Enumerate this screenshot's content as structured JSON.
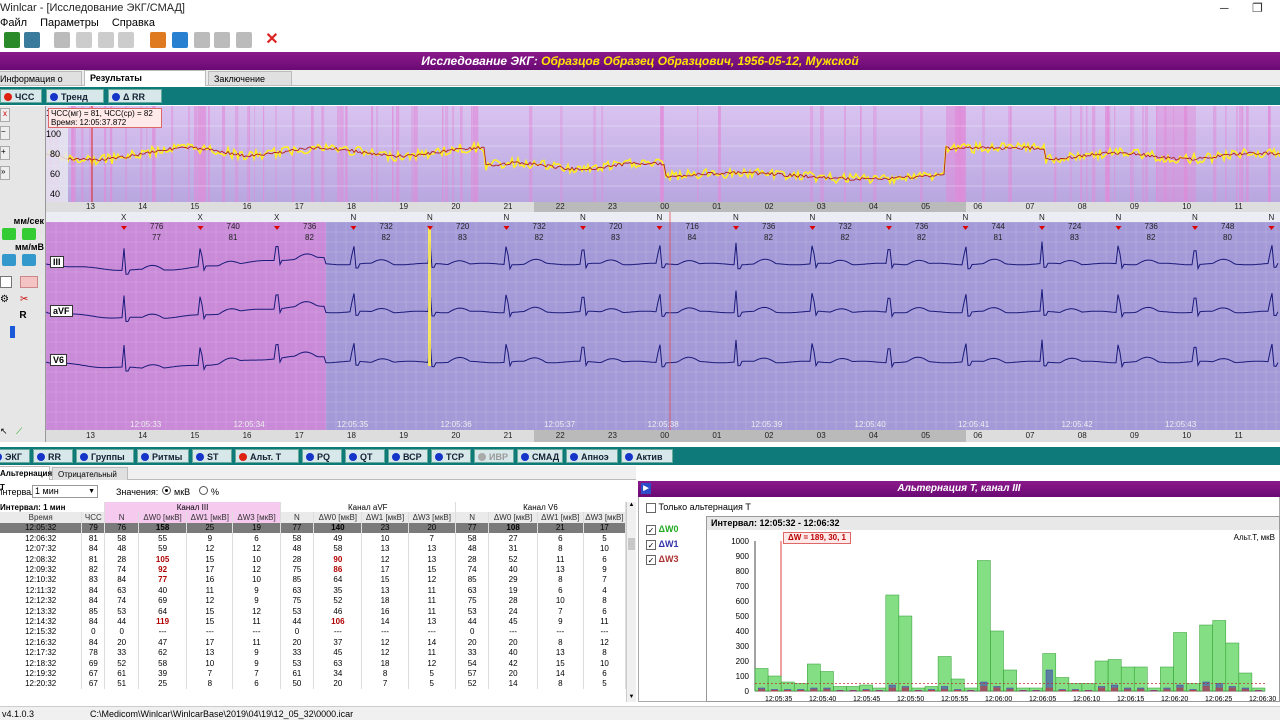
{
  "window": {
    "title": "Winlcar - [Исследование ЭКГ/СМАД]"
  },
  "menu": [
    "Файл",
    "Параметры",
    "Справка"
  ],
  "study_title_prefix": "Исследование ЭКГ:",
  "study_title_patient": "Образцов Образец Образцович, 1956-05-12, Мужской",
  "main_tabs": [
    "Информация о пациенте",
    "Результаты исследования",
    "Заключение врача"
  ],
  "trend_tabs": [
    "ЧСС",
    "Тренд RR",
    "Δ RR"
  ],
  "left_tools": {
    "speed": "мм/сек",
    "amp": "мм/мВ",
    "r": "R"
  },
  "trend": {
    "y_ticks": [
      "120",
      "100",
      "80",
      "60",
      "40"
    ],
    "tooltip_line1": "ЧСС(мг) = 81, ЧСС(ср) = 82",
    "tooltip_line2": "Время: 12:05:37.872"
  },
  "hour_ticks": [
    "13",
    "14",
    "15",
    "16",
    "17",
    "18",
    "19",
    "20",
    "21",
    "22",
    "23",
    "00",
    "01",
    "02",
    "03",
    "04",
    "05",
    "06",
    "07",
    "08",
    "09",
    "10",
    "11"
  ],
  "ecg": {
    "leads": [
      "III",
      "aVF",
      "V6"
    ],
    "time_labels": [
      "12:05:33",
      "12:05:34",
      "12:05:35",
      "12:05:36",
      "12:05:37",
      "12:05:38",
      "12:05:39",
      "12:05:40",
      "12:05:41",
      "12:05:42",
      "12:05:43"
    ],
    "rr": [
      {
        "rr": "776",
        "hr": "77"
      },
      {
        "rr": "740",
        "hr": "81"
      },
      {
        "rr": "736",
        "hr": "82"
      },
      {
        "rr": "732",
        "hr": "82"
      },
      {
        "rr": "720",
        "hr": "83"
      },
      {
        "rr": "732",
        "hr": "82"
      },
      {
        "rr": "720",
        "hr": "83"
      },
      {
        "rr": "716",
        "hr": "84"
      },
      {
        "rr": "736",
        "hr": "82"
      },
      {
        "rr": "732",
        "hr": "82"
      },
      {
        "rr": "736",
        "hr": "82"
      },
      {
        "rr": "744",
        "hr": "81"
      },
      {
        "rr": "724",
        "hr": "83"
      },
      {
        "rr": "736",
        "hr": "82"
      },
      {
        "rr": "748",
        "hr": "80"
      },
      {
        "rr": "744",
        "hr": "81"
      }
    ]
  },
  "func_tabs": [
    "ЭКГ",
    "RR",
    "Группы",
    "Ритмы",
    "ST",
    "Альт. T",
    "PQ",
    "QT",
    "ВСР",
    "ТСР",
    "ИВР",
    "СМАД",
    "Апноэ",
    "Актив"
  ],
  "sub_tabs": [
    "Альтернация T",
    "Отрицательный T"
  ],
  "controls": {
    "interval_label": "Интервал:",
    "interval_value": "1 мин",
    "values_label": "Значения:",
    "opt_mv": "мкВ",
    "opt_pct": "%"
  },
  "table": {
    "interval_title": "Интервал: 1 мин",
    "groups": [
      "Канал III",
      "Канал aVF",
      "Канал V6"
    ],
    "headers": [
      "Время",
      "ЧСС",
      "N",
      "ΔW0 [мкВ]",
      "ΔW1 [мкВ]",
      "ΔW3 [мкВ]",
      "N",
      "ΔW0 [мкВ]",
      "ΔW1 [мкВ]",
      "ΔW3 [мкВ]",
      "N",
      "ΔW0 [мкВ]",
      "ΔW1 [мкВ]",
      "ΔW3 [мкВ]"
    ],
    "rows": [
      [
        "12:05:32",
        "79",
        "76",
        "158",
        "25",
        "19",
        "77",
        "140",
        "23",
        "20",
        "77",
        "108",
        "21",
        "17"
      ],
      [
        "12:06:32",
        "81",
        "58",
        "55",
        "9",
        "6",
        "58",
        "49",
        "10",
        "7",
        "58",
        "27",
        "6",
        "5"
      ],
      [
        "12:07:32",
        "84",
        "48",
        "59",
        "12",
        "12",
        "48",
        "58",
        "13",
        "13",
        "48",
        "31",
        "8",
        "10"
      ],
      [
        "12:08:32",
        "81",
        "28",
        "105",
        "15",
        "10",
        "28",
        "90",
        "12",
        "13",
        "28",
        "52",
        "11",
        "6"
      ],
      [
        "12:09:32",
        "82",
        "74",
        "92",
        "17",
        "12",
        "75",
        "86",
        "17",
        "15",
        "74",
        "40",
        "13",
        "9"
      ],
      [
        "12:10:32",
        "83",
        "84",
        "77",
        "16",
        "10",
        "85",
        "64",
        "15",
        "12",
        "85",
        "29",
        "8",
        "7"
      ],
      [
        "12:11:32",
        "84",
        "63",
        "40",
        "11",
        "9",
        "63",
        "35",
        "13",
        "11",
        "63",
        "19",
        "6",
        "4"
      ],
      [
        "12:12:32",
        "84",
        "74",
        "69",
        "12",
        "9",
        "75",
        "52",
        "18",
        "11",
        "75",
        "28",
        "10",
        "8"
      ],
      [
        "12:13:32",
        "85",
        "53",
        "64",
        "15",
        "12",
        "53",
        "46",
        "16",
        "11",
        "53",
        "24",
        "7",
        "6"
      ],
      [
        "12:14:32",
        "84",
        "44",
        "119",
        "15",
        "11",
        "44",
        "106",
        "14",
        "13",
        "44",
        "45",
        "9",
        "11"
      ],
      [
        "12:15:32",
        "0",
        "0",
        "---",
        "---",
        "---",
        "0",
        "---",
        "---",
        "---",
        "0",
        "---",
        "---",
        "---"
      ],
      [
        "12:16:32",
        "84",
        "20",
        "47",
        "17",
        "11",
        "20",
        "37",
        "12",
        "14",
        "20",
        "20",
        "8",
        "12"
      ],
      [
        "12:17:32",
        "78",
        "33",
        "62",
        "13",
        "9",
        "33",
        "45",
        "12",
        "11",
        "33",
        "40",
        "13",
        "8"
      ],
      [
        "12:18:32",
        "69",
        "52",
        "58",
        "10",
        "9",
        "53",
        "63",
        "18",
        "12",
        "54",
        "42",
        "15",
        "10"
      ],
      [
        "12:19:32",
        "67",
        "61",
        "39",
        "7",
        "7",
        "61",
        "34",
        "8",
        "5",
        "57",
        "20",
        "14",
        "6"
      ],
      [
        "12:20:32",
        "67",
        "51",
        "25",
        "8",
        "6",
        "50",
        "20",
        "7",
        "5",
        "52",
        "14",
        "8",
        "5"
      ]
    ]
  },
  "alt_panel": {
    "title": "Альтернация T, канал III",
    "only_alt": "Только альтернация T",
    "checks": [
      "ΔW0",
      "ΔW1",
      "ΔW3"
    ],
    "interval_label": "Интервал: 12:05:32 - 12:06:32",
    "readout": "ΔW = 189, 30, 1",
    "corner_label": "Альт.Т, мкВ",
    "y_ticks": [
      "1000",
      "900",
      "800",
      "700",
      "600",
      "500",
      "400",
      "300",
      "200",
      "100",
      "0"
    ],
    "x_ticks": [
      "12:05:35",
      "12:05:40",
      "12:05:45",
      "12:05:50",
      "12:05:55",
      "12:06:00",
      "12:06:05",
      "12:06:10",
      "12:06:15",
      "12:06:20",
      "12:06:25",
      "12:06:30"
    ]
  },
  "chart_data": {
    "type": "bar",
    "title": "Альтернация T, канал III",
    "series": [
      {
        "name": "ΔW0",
        "values": [
          150,
          100,
          60,
          50,
          180,
          130,
          30,
          30,
          40,
          20,
          640,
          500,
          20,
          30,
          230,
          80,
          20,
          870,
          400,
          140,
          20,
          20,
          250,
          90,
          50,
          50,
          200,
          210,
          160,
          160,
          20,
          160,
          390,
          50,
          440,
          470,
          320,
          120,
          20
        ]
      },
      {
        "name": "ΔW1",
        "values": [
          20,
          10,
          10,
          10,
          20,
          20,
          5,
          5,
          10,
          5,
          40,
          30,
          5,
          10,
          30,
          10,
          5,
          60,
          30,
          20,
          5,
          5,
          140,
          10,
          10,
          5,
          30,
          40,
          20,
          20,
          5,
          20,
          40,
          10,
          60,
          50,
          30,
          20,
          5
        ]
      },
      {
        "name": "ΔW3",
        "values": [
          10,
          5,
          5,
          5,
          10,
          10,
          2,
          2,
          5,
          2,
          20,
          20,
          2,
          5,
          10,
          5,
          2,
          30,
          20,
          10,
          2,
          2,
          20,
          5,
          5,
          2,
          20,
          20,
          10,
          10,
          2,
          10,
          20,
          5,
          30,
          20,
          20,
          10,
          2
        ]
      }
    ],
    "ylim": [
      0,
      1000
    ],
    "colors": {
      "ΔW0": "#6fd86f",
      "ΔW1": "#4040b0",
      "ΔW3": "#c04040"
    }
  },
  "status": {
    "version": "v4.1.0.3",
    "path": "C:\\Medicom\\Winlcar\\WinlcarBase\\2019\\04\\19\\12_05_32\\0000.icar"
  }
}
